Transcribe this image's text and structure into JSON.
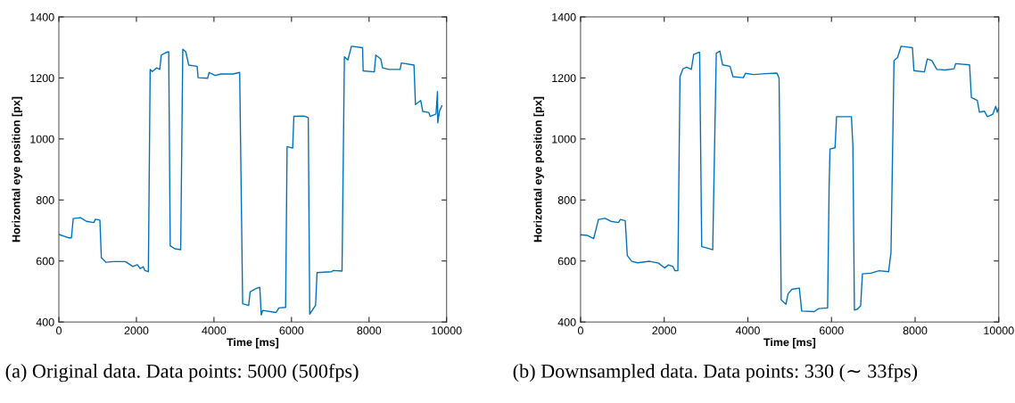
{
  "chart_data": [
    {
      "type": "line",
      "xlabel": "Time [ms]",
      "ylabel": "Horizontal eye position [px]",
      "annotations": [
        "(a) Original data. Data points: 5000 (500fps)"
      ],
      "xlim": [
        0,
        10000
      ],
      "ylim": [
        400,
        1400
      ],
      "xticks": [
        0,
        2000,
        4000,
        6000,
        8000,
        10000
      ],
      "yticks": [
        400,
        600,
        800,
        1000,
        1200,
        1400
      ],
      "marker": "none",
      "line_style": "solid",
      "series": [
        {
          "color": "#0072bd",
          "x": [
            0,
            247,
            324,
            371,
            556,
            710,
            903,
            942,
            1058,
            1096,
            1212,
            1405,
            1714,
            1907,
            2023,
            2100,
            2177,
            2216,
            2308,
            2355,
            2409,
            2524,
            2602,
            2640,
            2756,
            2833,
            2872,
            2988,
            3142,
            3196,
            3273,
            3350,
            3567,
            3590,
            3837,
            3875,
            4030,
            4184,
            4493,
            4663,
            4740,
            4895,
            4933,
            5072,
            5182,
            5220,
            5258,
            5599,
            5674,
            5848,
            5886,
            6030,
            6061,
            6318,
            6432,
            6470,
            6621,
            6659,
            7038,
            7076,
            7303,
            7364,
            7455,
            7545,
            7833,
            7848,
            8136,
            8174,
            8303,
            8348,
            8515,
            8803,
            8833,
            9159,
            9197,
            9333,
            9386,
            9538,
            9576,
            9727,
            9765,
            9773,
            9818,
            9879
          ],
          "values": [
            687,
            676,
            676,
            739,
            742,
            730,
            726,
            737,
            734,
            611,
            596,
            598,
            598,
            582,
            588,
            575,
            581,
            569,
            565,
            1228,
            1221,
            1233,
            1228,
            1275,
            1283,
            1286,
            650,
            640,
            637,
            1294,
            1286,
            1242,
            1238,
            1201,
            1199,
            1218,
            1208,
            1213,
            1213,
            1218,
            460,
            454,
            499,
            509,
            514,
            423,
            438,
            431,
            446,
            448,
            975,
            970,
            1074,
            1075,
            1070,
            426,
            455,
            562,
            565,
            569,
            567,
            1269,
            1259,
            1304,
            1299,
            1223,
            1220,
            1275,
            1262,
            1233,
            1228,
            1228,
            1249,
            1242,
            1113,
            1126,
            1090,
            1087,
            1074,
            1082,
            1155,
            1053,
            1092,
            1109
          ]
        }
      ]
    },
    {
      "type": "line",
      "xlabel": "Time [ms]",
      "ylabel": "Horizontal eye position [px]",
      "annotations": [
        "(b) Downsampled data. Data points: 330 (∼ 33fps)"
      ],
      "xlim": [
        0,
        10000
      ],
      "ylim": [
        400,
        1400
      ],
      "xticks": [
        0,
        2000,
        4000,
        6000,
        8000,
        10000
      ],
      "yticks": [
        400,
        600,
        800,
        1000,
        1200,
        1400
      ],
      "marker": "none",
      "line_style": "solid",
      "series": [
        {
          "color": "#0072bd",
          "x": [
            0,
            157,
            313,
            427,
            584,
            726,
            904,
            954,
            1068,
            1117,
            1224,
            1367,
            1651,
            1865,
            2007,
            2100,
            2206,
            2256,
            2327,
            2377,
            2448,
            2541,
            2648,
            2705,
            2804,
            2847,
            2897,
            3039,
            3160,
            3245,
            3331,
            3395,
            3573,
            3644,
            3893,
            3943,
            4142,
            4427,
            4697,
            4747,
            4797,
            4911,
            4961,
            5053,
            5231,
            5288,
            5587,
            5694,
            5907,
            5943,
            5964,
            6085,
            6121,
            6477,
            6512,
            6548,
            6619,
            6697,
            6740,
            6939,
            7139,
            7366,
            7423,
            7495,
            7580,
            7665,
            7936,
            7971,
            8221,
            8292,
            8398,
            8520,
            8719,
            8932,
            8968,
            9302,
            9345,
            9487,
            9537,
            9658,
            9729,
            9857,
            9928,
            9964,
            10000
          ],
          "values": [
            686,
            684,
            673,
            736,
            740,
            730,
            726,
            736,
            732,
            618,
            599,
            594,
            599,
            593,
            577,
            587,
            582,
            568,
            568,
            1204,
            1230,
            1235,
            1228,
            1277,
            1283,
            1284,
            647,
            642,
            637,
            1281,
            1288,
            1243,
            1238,
            1204,
            1201,
            1215,
            1211,
            1214,
            1216,
            1199,
            473,
            458,
            492,
            507,
            511,
            436,
            434,
            444,
            446,
            841,
            967,
            971,
            1073,
            1073,
            976,
            439,
            442,
            453,
            558,
            560,
            568,
            565,
            628,
            1257,
            1267,
            1304,
            1299,
            1224,
            1220,
            1262,
            1257,
            1228,
            1226,
            1230,
            1247,
            1243,
            1136,
            1126,
            1088,
            1091,
            1073,
            1081,
            1107,
            1088,
            1102
          ]
        }
      ]
    }
  ]
}
